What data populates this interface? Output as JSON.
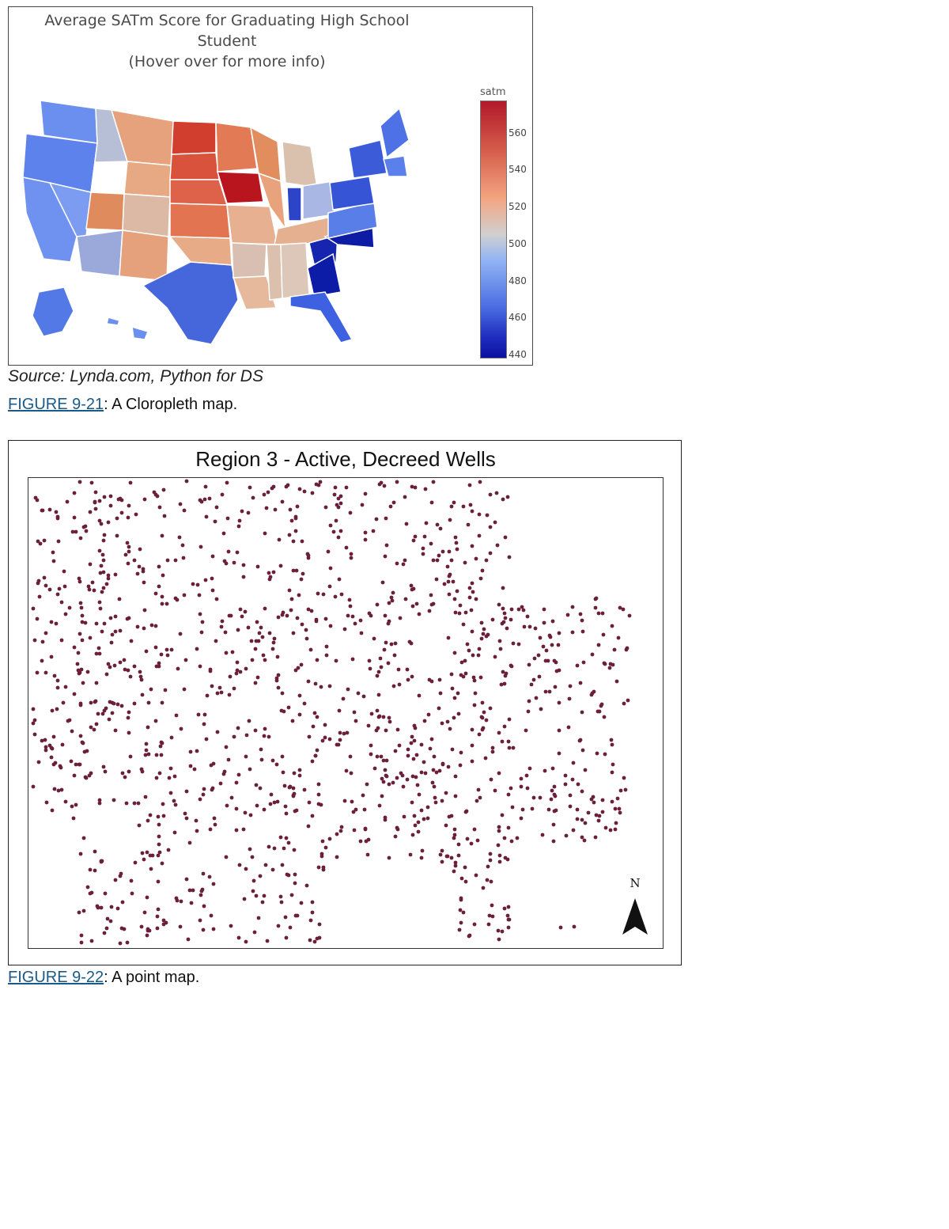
{
  "figure1": {
    "title_line1": "Average SATm Score for Graduating High School Student",
    "title_line2": "(Hover over for more info)",
    "colorbar": {
      "label": "satm",
      "ticks": [
        "560",
        "540",
        "520",
        "500",
        "480",
        "460",
        "440"
      ],
      "colors": [
        "#b2182b",
        "#d6604d",
        "#f4a582",
        "#d0d0d0",
        "#92b4f4",
        "#4a6fe3",
        "#0a10a0"
      ]
    },
    "source": "Source: Lynda.com, Python for DS",
    "caption_ref": "FIGURE 9-21",
    "caption_text": ": A Cloropleth map."
  },
  "figure2": {
    "title": "Region 3  -  Active, Decreed Wells",
    "north_label": "N",
    "point_color": "#6b1f3a",
    "caption_ref": "FIGURE 9-22",
    "caption_text": ": A point map."
  }
}
